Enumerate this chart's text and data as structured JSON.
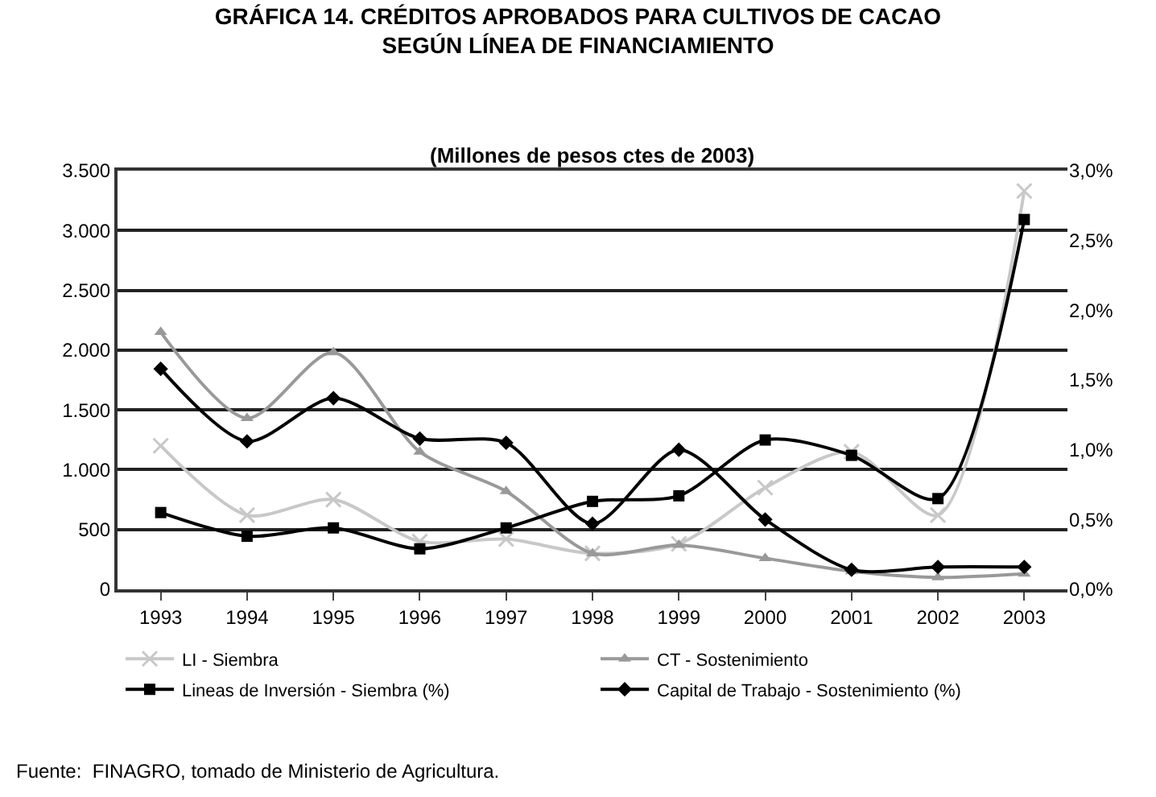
{
  "chart_data": {
    "type": "line",
    "title": "GRÁFICA 14. CRÉDITOS APROBADOS PARA CULTIVOS DE CACAO\nSEGÚN LÍNEA DE FINANCIAMIENTO",
    "subtitle": "(Millones de pesos ctes de 2003)",
    "categories": [
      "1993",
      "1994",
      "1995",
      "1996",
      "1997",
      "1998",
      "1999",
      "2000",
      "2001",
      "2002",
      "2003"
    ],
    "series": [
      {
        "name": "LI - Siembra",
        "color": "#c8c8c8",
        "marker": "cross",
        "values": [
          1200,
          620,
          750,
          400,
          420,
          300,
          380,
          850,
          1150,
          620,
          3330
        ]
      },
      {
        "name": "CT - Sostenimiento",
        "color": "#999999",
        "marker": "triangle",
        "values": [
          2150,
          1430,
          1980,
          1150,
          820,
          300,
          370,
          260,
          150,
          100,
          130
        ]
      },
      {
        "name": "Lineas de Inversión - Siembra (%)",
        "color": "#000000",
        "marker": "square",
        "axis": "y2",
        "values": [
          0.55,
          0.38,
          0.44,
          0.29,
          0.44,
          0.63,
          0.67,
          1.07,
          0.96,
          0.65,
          2.65
        ]
      },
      {
        "name": "Capital de Trabajo - Sostenimiento (%)",
        "color": "#000000",
        "marker": "diamond",
        "axis": "y2",
        "values": [
          1.58,
          1.06,
          1.37,
          1.08,
          1.05,
          0.47,
          1.0,
          0.5,
          0.14,
          0.16,
          0.16
        ]
      }
    ],
    "ylim": [
      0,
      3500
    ],
    "yticks": [
      0,
      {
        "value": 500,
        "label": "500"
      },
      {
        "value": 1000,
        "label": "1.000"
      },
      {
        "value": 1500,
        "label": "1.500"
      },
      {
        "value": 2000,
        "label": "2.000"
      },
      {
        "value": 2500,
        "label": "2.500"
      },
      {
        "value": 3000,
        "label": "3.000"
      },
      {
        "value": 3500,
        "label": "3.500"
      }
    ],
    "y2lim": [
      0,
      3.0
    ],
    "y2ticks": [
      {
        "value": 0,
        "label": "0,0%"
      },
      {
        "value": 0.5,
        "label": "0,5%"
      },
      {
        "value": 1.0,
        "label": "1,0%"
      },
      {
        "value": 1.5,
        "label": "1,5%"
      },
      {
        "value": 2.0,
        "label": "2,0%"
      },
      {
        "value": 2.5,
        "label": "2,5%"
      },
      {
        "value": 3.0,
        "label": "3,0%"
      }
    ],
    "grid": "y",
    "legend": "bottom",
    "annotations": [
      "Fuente:  FINAGRO, tomado de Ministerio de Agricultura."
    ]
  }
}
